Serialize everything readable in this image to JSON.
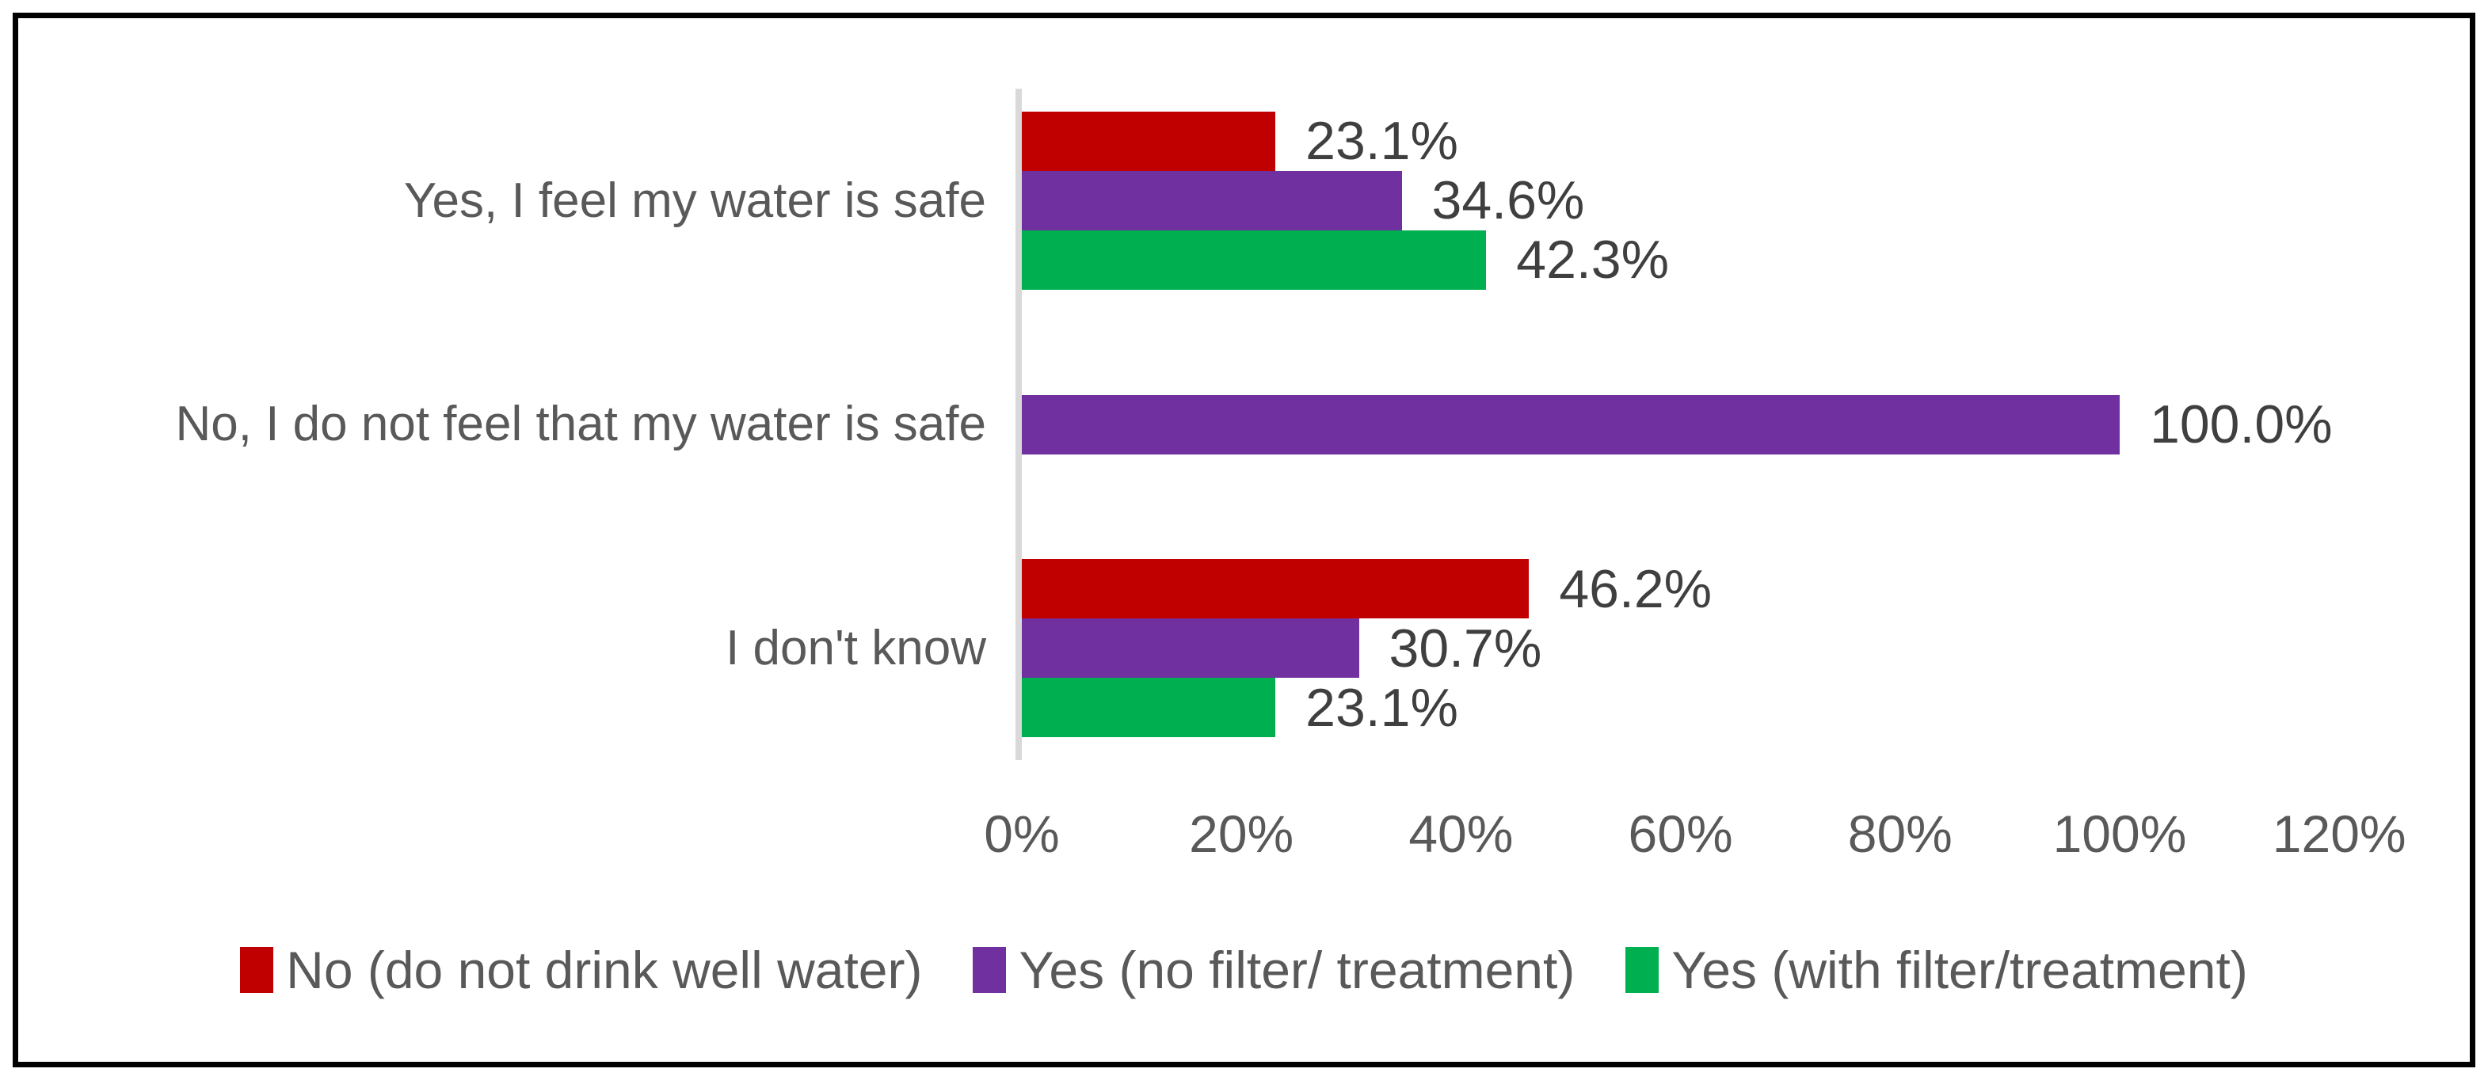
{
  "chart_data": {
    "type": "bar",
    "orientation": "horizontal",
    "title": "",
    "categories": [
      "Yes, I feel my water is safe",
      "No, I do not feel that my water is safe",
      "I don't know"
    ],
    "series": [
      {
        "name": "No (do not drink well water)",
        "color": "#C00000",
        "values": [
          23.1,
          null,
          46.2
        ],
        "labels": [
          "23.1%",
          null,
          "46.2%"
        ]
      },
      {
        "name": "Yes (no filter/ treatment)",
        "color": "#7030A0",
        "values": [
          34.6,
          100.0,
          30.7
        ],
        "labels": [
          "34.6%",
          "100.0%",
          "30.7%"
        ]
      },
      {
        "name": "Yes (with filter/treatment)",
        "color": "#00B050",
        "values": [
          42.3,
          null,
          23.1
        ],
        "labels": [
          "42.3%",
          null,
          "23.1%"
        ]
      }
    ],
    "x_ticks": [
      "0%",
      "20%",
      "40%",
      "60%",
      "80%",
      "100%",
      "120%"
    ],
    "xlim": [
      0,
      120
    ],
    "grid": false,
    "legend_position": "bottom",
    "colors": {
      "axis_line": "#D9D9D9",
      "axis_text": "#595959",
      "category_text": "#595959",
      "legend_text": "#595959",
      "data_label_text": "#3F3F3F",
      "frame_border": "#000000",
      "background": "#FFFFFF"
    }
  }
}
